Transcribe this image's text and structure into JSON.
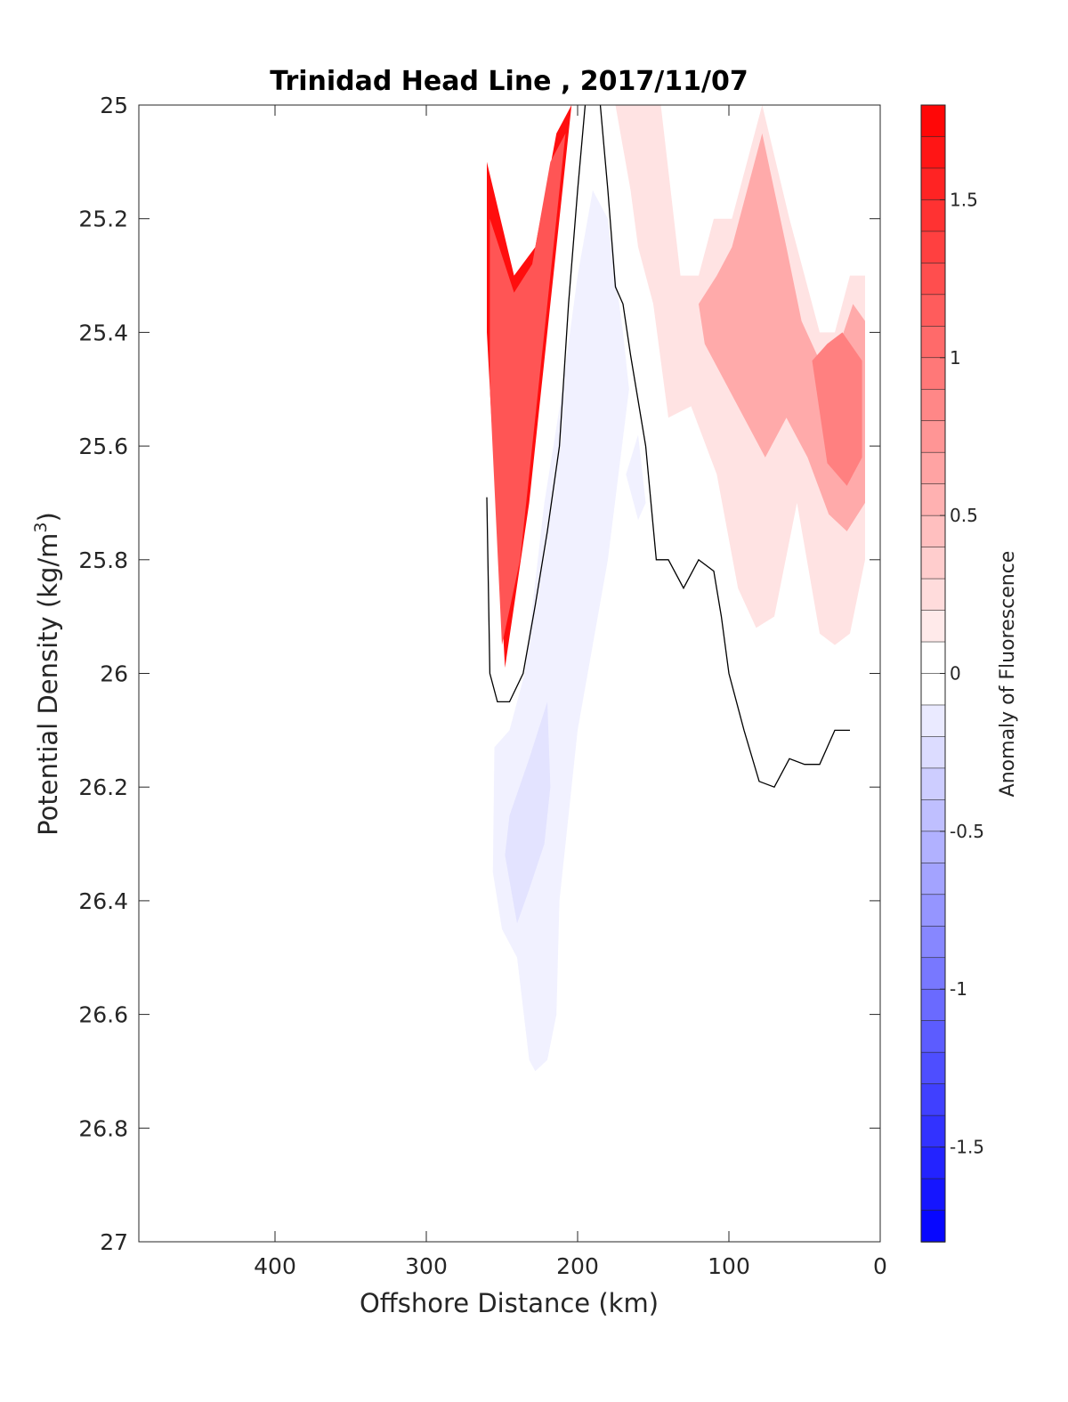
{
  "chart_data": {
    "type": "contour",
    "title": "Trinidad Head Line , 2017/11/07",
    "xlabel": "Offshore Distance (km)",
    "ylabel_main": "Potential Density (kg/m",
    "ylabel_sup": "3",
    "ylabel_close": ")",
    "xlim": [
      490,
      0
    ],
    "ylim": [
      25,
      27
    ],
    "y_reversed": true,
    "x_reversed": true,
    "grid": false,
    "xticks": [
      400,
      300,
      200,
      100,
      0
    ],
    "yticks": [
      25,
      25.2,
      25.4,
      25.6,
      25.8,
      26,
      26.2,
      26.4,
      26.6,
      26.8,
      27
    ],
    "xtick_labels": [
      "400",
      "300",
      "200",
      "100",
      "0"
    ],
    "ytick_labels": [
      "25",
      "25.2",
      "25.4",
      "25.6",
      "25.8",
      "26",
      "26.2",
      "26.4",
      "26.6",
      "26.8",
      "27"
    ],
    "colorbar": {
      "label": "Anomaly of Fluorescence",
      "range": [
        -1.8,
        1.8
      ],
      "step": 0.1,
      "ticks": [
        1.5,
        1,
        0.5,
        0,
        -0.5,
        -1,
        -1.5
      ],
      "tick_labels": [
        "1.5",
        "1",
        "0.5",
        "0",
        "-0.5",
        "-1",
        "-1.5"
      ],
      "low_color": "#0000ff",
      "mid_color": "#ffffff",
      "high_color": "#ff0000"
    },
    "regions": [
      {
        "name": "offshore-red-core",
        "value": 1.7,
        "x": [
          260,
          242,
          228,
          214,
          204,
          212,
          222,
          232,
          248,
          260
        ],
        "y": [
          25.1,
          25.3,
          25.25,
          25.05,
          25.0,
          25.2,
          25.45,
          25.7,
          25.99,
          25.4
        ]
      },
      {
        "name": "offshore-red-mid",
        "value": 1.2,
        "x": [
          258,
          242,
          230,
          218,
          208,
          216,
          226,
          238,
          250,
          258
        ],
        "y": [
          25.2,
          25.33,
          25.28,
          25.1,
          25.05,
          25.25,
          25.5,
          25.8,
          25.95,
          25.5
        ]
      },
      {
        "name": "shelf-red-light",
        "value": 0.2,
        "x": [
          175,
          145,
          132,
          120,
          110,
          98,
          78,
          60,
          50,
          40,
          30,
          20,
          10,
          10,
          20,
          30,
          40,
          55,
          70,
          82,
          94,
          108,
          125,
          140,
          150,
          160,
          165,
          175
        ],
        "y": [
          25.0,
          25.0,
          25.3,
          25.3,
          25.2,
          25.2,
          25.0,
          25.2,
          25.3,
          25.4,
          25.4,
          25.3,
          25.3,
          25.8,
          25.93,
          25.95,
          25.93,
          25.7,
          25.9,
          25.92,
          25.85,
          25.65,
          25.53,
          25.55,
          25.35,
          25.25,
          25.15,
          25.0
        ]
      },
      {
        "name": "shelf-red-medium",
        "value": 0.6,
        "x": [
          120,
          108,
          98,
          78,
          62,
          52,
          40,
          28,
          18,
          10,
          10,
          22,
          34,
          48,
          62,
          76,
          90,
          104,
          116,
          120
        ],
        "y": [
          25.35,
          25.3,
          25.25,
          25.05,
          25.25,
          25.38,
          25.45,
          25.43,
          25.35,
          25.38,
          25.7,
          25.75,
          25.72,
          25.62,
          25.55,
          25.62,
          25.55,
          25.48,
          25.42,
          25.35
        ]
      },
      {
        "name": "shelf-red-strong",
        "value": 0.9,
        "x": [
          45,
          35,
          25,
          12,
          12,
          22,
          35,
          45
        ],
        "y": [
          25.45,
          25.42,
          25.4,
          25.45,
          25.62,
          25.67,
          25.63,
          25.45
        ]
      },
      {
        "name": "blue-tongue-light",
        "value": -0.1,
        "x": [
          190,
          180,
          170,
          166,
          180,
          200,
          212,
          214,
          220,
          228,
          232,
          240,
          250,
          256,
          255,
          245,
          235,
          222,
          210,
          200,
          190
        ],
        "y": [
          25.15,
          25.2,
          25.4,
          25.5,
          25.8,
          26.1,
          26.4,
          26.6,
          26.68,
          26.7,
          26.68,
          26.5,
          26.45,
          26.35,
          26.13,
          26.1,
          26.0,
          25.7,
          25.5,
          25.3,
          25.15
        ]
      },
      {
        "name": "blue-tongue-mid",
        "value": -0.2,
        "x": [
          245,
          232,
          220,
          218,
          222,
          232,
          240,
          248,
          245
        ],
        "y": [
          26.25,
          26.15,
          26.05,
          26.2,
          26.3,
          26.38,
          26.44,
          26.32,
          26.25
        ]
      },
      {
        "name": "blue-patch-small",
        "value": -0.1,
        "x": [
          168,
          160,
          155,
          160,
          168
        ],
        "y": [
          25.65,
          25.58,
          25.7,
          25.73,
          25.65
        ]
      }
    ],
    "zero_contour": [
      {
        "x": [
          185,
          180,
          175,
          170,
          165,
          155,
          148,
          140,
          130,
          120,
          110,
          105,
          100,
          95,
          90,
          80,
          70,
          60,
          50,
          40,
          30,
          20
        ],
        "y": [
          25.0,
          25.15,
          25.32,
          25.35,
          25.44,
          25.6,
          25.8,
          25.8,
          25.85,
          25.8,
          25.82,
          25.9,
          26.0,
          26.05,
          26.1,
          26.19,
          26.2,
          26.15,
          26.16,
          26.16,
          26.1,
          26.1
        ]
      },
      {
        "x": [
          195,
          200,
          206,
          212,
          220,
          228,
          236,
          245,
          253,
          258,
          260
        ],
        "y": [
          25.0,
          25.15,
          25.35,
          25.6,
          25.75,
          25.88,
          26.0,
          26.05,
          26.05,
          26.0,
          25.69
        ]
      }
    ]
  }
}
